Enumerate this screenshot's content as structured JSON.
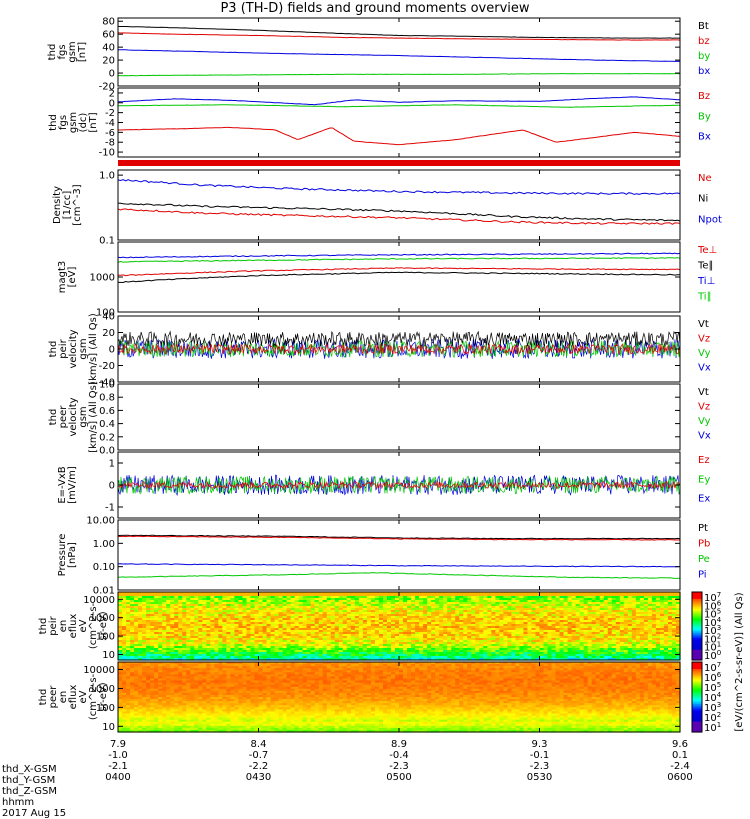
{
  "title": "P3 (TH-D) fields and ground moments overview",
  "chart_data": [
    {
      "type": "line",
      "ylabel": [
        "thd",
        "fgs",
        "gsm",
        "[nT]"
      ],
      "yticks": [
        "80",
        "60",
        "40",
        "20",
        "0",
        "-20"
      ],
      "ylim": [
        -20,
        85
      ],
      "legend": [
        {
          "name": "Bt",
          "color": "#000000"
        },
        {
          "name": "bz",
          "color": "#e00000"
        },
        {
          "name": "by",
          "color": "#00c800"
        },
        {
          "name": "bx",
          "color": "#0000e0"
        }
      ],
      "series": [
        {
          "name": "Bt",
          "color": "#000000",
          "x": [
            0,
            0.1,
            0.25,
            0.4,
            0.5,
            0.6,
            0.75,
            0.9,
            1
          ],
          "y": [
            72,
            70,
            66,
            61,
            58,
            57,
            55,
            54,
            54
          ]
        },
        {
          "name": "bz",
          "color": "#e00000",
          "x": [
            0,
            0.1,
            0.25,
            0.4,
            0.5,
            0.6,
            0.75,
            0.9,
            1
          ],
          "y": [
            62,
            60,
            58,
            55,
            54,
            53,
            52,
            51,
            51
          ]
        },
        {
          "name": "by",
          "color": "#00c800",
          "x": [
            0,
            0.2,
            0.4,
            0.6,
            0.8,
            1
          ],
          "y": [
            -4,
            -3,
            -2,
            -2,
            -1,
            -1
          ]
        },
        {
          "name": "bx",
          "color": "#0000e0",
          "x": [
            0,
            0.15,
            0.3,
            0.5,
            0.7,
            0.85,
            1
          ],
          "y": [
            36,
            33,
            30,
            27,
            23,
            20,
            18
          ]
        }
      ]
    },
    {
      "type": "line",
      "ylabel": [
        "thd",
        "fgs",
        "gsm",
        "(dc)",
        "[nT]"
      ],
      "yticks": [
        "2",
        "0",
        "-2",
        "-4",
        "-6",
        "-8",
        "-10"
      ],
      "ylim": [
        -11,
        3
      ],
      "legend": [
        {
          "name": "Bz",
          "color": "#e00000"
        },
        {
          "name": "By",
          "color": "#00c800"
        },
        {
          "name": "Bx",
          "color": "#0000e0"
        }
      ],
      "series": [
        {
          "name": "Bz",
          "color": "#e00000",
          "x": [
            0,
            0.1,
            0.2,
            0.28,
            0.32,
            0.38,
            0.42,
            0.5,
            0.6,
            0.72,
            0.78,
            0.85,
            0.92,
            1
          ],
          "y": [
            -5.5,
            -5.3,
            -5.0,
            -5.5,
            -7.5,
            -5.0,
            -7.8,
            -8.5,
            -7.5,
            -5.5,
            -8.0,
            -7.0,
            -6.0,
            -6.8
          ]
        },
        {
          "name": "By",
          "color": "#00c800",
          "x": [
            0,
            0.2,
            0.4,
            0.6,
            0.8,
            1
          ],
          "y": [
            -0.6,
            -0.4,
            -0.8,
            -0.4,
            -0.9,
            -0.5
          ]
        },
        {
          "name": "Bx",
          "color": "#0000e0",
          "x": [
            0,
            0.1,
            0.2,
            0.35,
            0.42,
            0.5,
            0.6,
            0.75,
            0.85,
            0.92,
            1
          ],
          "y": [
            0.2,
            0.8,
            0.5,
            -0.4,
            0.6,
            0.1,
            0.4,
            0.3,
            0.9,
            1.2,
            0.6
          ]
        }
      ]
    },
    {
      "type": "line",
      "ylabel": [
        "Density",
        "[1/cc]",
        "[cm^-3]"
      ],
      "yticks": [
        "1.0",
        "0.1"
      ],
      "log": true,
      "ylim": [
        0.1,
        1.2
      ],
      "legend": [
        {
          "name": "Ne",
          "color": "#e00000"
        },
        {
          "name": "Ni",
          "color": "#000000"
        },
        {
          "name": "Npot",
          "color": "#0000e0"
        }
      ],
      "series": [
        {
          "name": "Npot",
          "color": "#0000e0",
          "x": [
            0,
            0.15,
            0.3,
            0.5,
            0.7,
            0.85,
            1
          ],
          "y": [
            0.85,
            0.7,
            0.62,
            0.56,
            0.53,
            0.52,
            0.52
          ]
        },
        {
          "name": "Ni",
          "color": "#000000",
          "x": [
            0,
            0.15,
            0.3,
            0.5,
            0.7,
            0.85,
            1
          ],
          "y": [
            0.37,
            0.33,
            0.31,
            0.28,
            0.23,
            0.21,
            0.2
          ]
        },
        {
          "name": "Ne",
          "color": "#e00000",
          "x": [
            0,
            0.15,
            0.3,
            0.5,
            0.7,
            0.85,
            1
          ],
          "y": [
            0.3,
            0.26,
            0.24,
            0.22,
            0.19,
            0.18,
            0.18
          ]
        }
      ]
    },
    {
      "type": "line",
      "ylabel": [
        "magt3",
        "[eV]"
      ],
      "yticks": [
        "1000",
        "100"
      ],
      "log": true,
      "ylim": [
        100,
        10000
      ],
      "legend": [
        {
          "name": "Te⊥",
          "color": "#e00000"
        },
        {
          "name": "Te∥",
          "color": "#000000"
        },
        {
          "name": "Ti⊥",
          "color": "#0000e0"
        },
        {
          "name": "Ti∥",
          "color": "#00c800"
        }
      ],
      "series": [
        {
          "name": "Ti⊥",
          "color": "#0000e0",
          "x": [
            0,
            0.25,
            0.5,
            0.75,
            1
          ],
          "y": [
            3600,
            4000,
            4300,
            4500,
            4700
          ]
        },
        {
          "name": "Ti∥",
          "color": "#00c800",
          "x": [
            0,
            0.25,
            0.5,
            0.75,
            1
          ],
          "y": [
            2700,
            3000,
            3300,
            3400,
            3500
          ]
        },
        {
          "name": "Te⊥",
          "color": "#e00000",
          "x": [
            0,
            0.25,
            0.5,
            0.75,
            1
          ],
          "y": [
            1100,
            1500,
            1800,
            1700,
            1650
          ]
        },
        {
          "name": "Te∥",
          "color": "#000000",
          "x": [
            0,
            0.25,
            0.5,
            0.75,
            1
          ],
          "y": [
            700,
            1100,
            1350,
            1250,
            1150
          ]
        }
      ]
    },
    {
      "type": "line",
      "ylabel": [
        "thd",
        "peir",
        "velocity",
        "gsm",
        "[km/s] (All Qs)"
      ],
      "yticks": [
        "40",
        "20",
        "0",
        "-20",
        "-40"
      ],
      "ylim": [
        -40,
        40
      ],
      "noisy": true,
      "legend": [
        {
          "name": "Vt",
          "color": "#000000"
        },
        {
          "name": "Vz",
          "color": "#e00000"
        },
        {
          "name": "Vy",
          "color": "#00c800"
        },
        {
          "name": "Vx",
          "color": "#0000e0"
        }
      ],
      "series": [
        {
          "name": "Vx",
          "color": "#0000e0",
          "x": [
            0,
            1
          ],
          "y": [
            0,
            0
          ],
          "noise": 12
        },
        {
          "name": "Vy",
          "color": "#00c800",
          "x": [
            0,
            1
          ],
          "y": [
            0,
            0
          ],
          "noise": 10
        },
        {
          "name": "Vt",
          "color": "#000000",
          "x": [
            0,
            1
          ],
          "y": [
            12,
            12
          ],
          "noise": 9
        },
        {
          "name": "Vz",
          "color": "#e00000",
          "x": [
            0,
            1
          ],
          "y": [
            0,
            0
          ],
          "noise": 6
        }
      ]
    },
    {
      "type": "line",
      "ylabel": [
        "thd",
        "peer",
        "velocity",
        "gsm",
        "[km/s] (All Qs)"
      ],
      "yticks": [
        "1.0",
        "0.8",
        "0.6",
        "0.4",
        "0.2",
        "0.0"
      ],
      "ylim": [
        0,
        1
      ],
      "legend": [
        {
          "name": "Vt",
          "color": "#000000"
        },
        {
          "name": "Vz",
          "color": "#e00000"
        },
        {
          "name": "Vy",
          "color": "#00c800"
        },
        {
          "name": "Vx",
          "color": "#0000e0"
        }
      ],
      "series": []
    },
    {
      "type": "line",
      "ylabel": [
        "E=-VxB",
        "[mV/m]"
      ],
      "yticks": [
        "1",
        "0",
        "-1"
      ],
      "ylim": [
        -1.5,
        1.5
      ],
      "noisy": true,
      "legend": [
        {
          "name": "Ez",
          "color": "#e00000"
        },
        {
          "name": "Ey",
          "color": "#00c800"
        },
        {
          "name": "Ex",
          "color": "#0000e0"
        }
      ],
      "series": [
        {
          "name": "Ex",
          "color": "#0000e0",
          "x": [
            0,
            1
          ],
          "y": [
            0,
            0
          ],
          "noise": 0.45
        },
        {
          "name": "Ey",
          "color": "#00c800",
          "x": [
            0,
            1
          ],
          "y": [
            0,
            0
          ],
          "noise": 0.4
        },
        {
          "name": "Ez",
          "color": "#e00000",
          "x": [
            0,
            1
          ],
          "y": [
            0,
            0
          ],
          "noise": 0.15
        }
      ]
    },
    {
      "type": "line",
      "ylabel": [
        "Pressure",
        "[nPa]"
      ],
      "yticks": [
        "10.00",
        "1.00",
        "0.10",
        "0.01"
      ],
      "log": true,
      "ylim": [
        0.01,
        10
      ],
      "legend": [
        {
          "name": "Pt",
          "color": "#000000"
        },
        {
          "name": "Pb",
          "color": "#e00000"
        },
        {
          "name": "Pe",
          "color": "#00c800"
        },
        {
          "name": "Pi",
          "color": "#0000e0"
        }
      ],
      "series": [
        {
          "name": "Pt",
          "color": "#000000",
          "x": [
            0,
            0.3,
            0.5,
            0.7,
            1
          ],
          "y": [
            2.2,
            2.0,
            1.7,
            1.6,
            1.6
          ]
        },
        {
          "name": "Pb",
          "color": "#e00000",
          "x": [
            0,
            0.3,
            0.5,
            0.7,
            1
          ],
          "y": [
            2.0,
            1.8,
            1.55,
            1.45,
            1.4
          ]
        },
        {
          "name": "Pi",
          "color": "#0000e0",
          "x": [
            0,
            0.3,
            0.5,
            0.7,
            1
          ],
          "y": [
            0.13,
            0.12,
            0.11,
            0.105,
            0.1
          ]
        },
        {
          "name": "Pe",
          "color": "#00c800",
          "x": [
            0,
            0.3,
            0.45,
            0.6,
            0.8,
            1
          ],
          "y": [
            0.035,
            0.045,
            0.055,
            0.045,
            0.035,
            0.032
          ]
        }
      ]
    },
    {
      "type": "heatmap",
      "ylabel": [
        "thd",
        "peir",
        "en",
        "eflux",
        "eV",
        "(cm^2-s-",
        "sr-eV)"
      ],
      "yticks": [
        "10000",
        "1000",
        "100",
        "10"
      ],
      "log": true,
      "ylim": [
        5,
        25000
      ],
      "profile": "ion"
    },
    {
      "type": "heatmap",
      "ylabel": [
        "thd",
        "peer",
        "en",
        "eflux",
        "eV",
        "(cm^2-s-",
        "sr-eV)"
      ],
      "yticks": [
        "10000",
        "1000",
        "100",
        "10"
      ],
      "log": true,
      "ylim": [
        5,
        25000
      ],
      "profile": "electron"
    }
  ],
  "colorbars": [
    {
      "label": "[eV/(cm^2-s-sr-eV)] (All Qs)",
      "ticks": [
        "10^7",
        "10^6",
        "10^5",
        "10^4",
        "10^3",
        "10^2",
        "10^1",
        "10^0"
      ]
    },
    {
      "label": "[eV/(cm^2-s-sr-eV)] (All Qs)",
      "ticks": [
        "10^7",
        "10^6",
        "10^5",
        "10^4",
        "10^3",
        "10^2",
        "10^1"
      ]
    }
  ],
  "x_axis": {
    "rows": [
      {
        "label": "thd_X-GSM",
        "values": [
          "7.9",
          "8.4",
          "8.9",
          "9.3",
          "9.6"
        ]
      },
      {
        "label": "thd_Y-GSM",
        "values": [
          "-1.0",
          "-0.7",
          "-0.4",
          "-0.1",
          "0.1"
        ]
      },
      {
        "label": "thd_Z-GSM",
        "values": [
          "-2.1",
          "-2.2",
          "-2.3",
          "-2.3",
          "-2.4"
        ]
      },
      {
        "label": "hhmm",
        "values": [
          "0400",
          "0430",
          "0500",
          "0530",
          "0600"
        ]
      }
    ],
    "date": "2017 Aug 15"
  },
  "colors": {
    "red": "#e00000",
    "green": "#00c800",
    "blue": "#0000e0",
    "black": "#000000"
  }
}
